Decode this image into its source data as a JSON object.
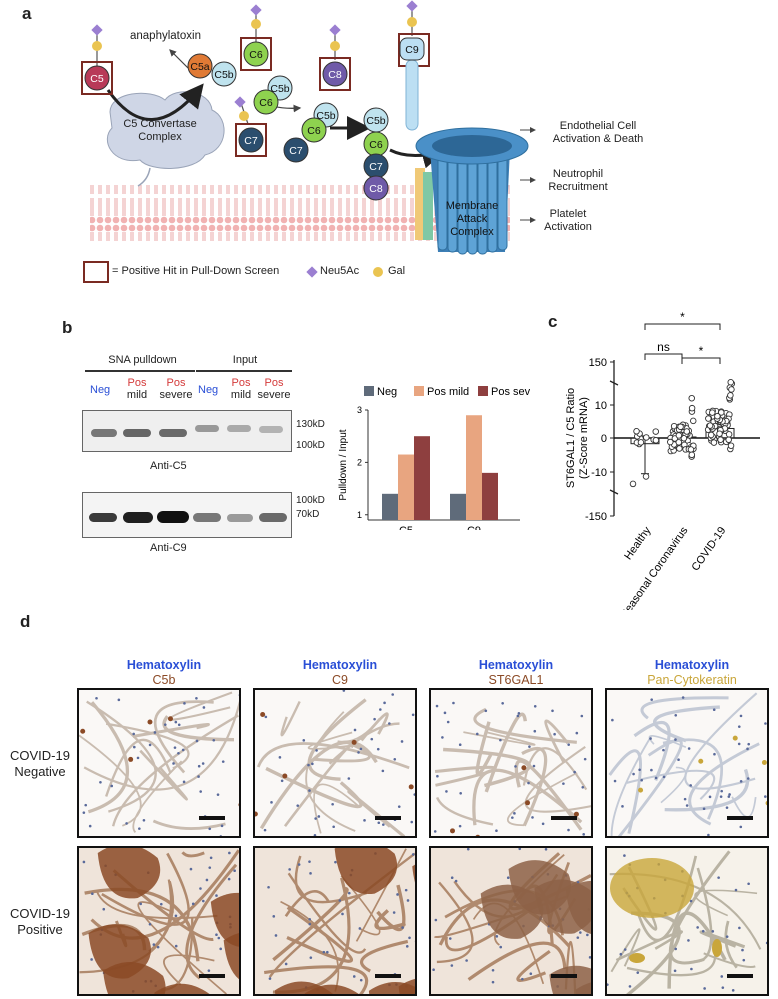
{
  "panel_a": {
    "label": "a",
    "anaphylatoxin": "anaphylatoxin",
    "convertase": [
      "C5 Convertase",
      "Complex"
    ],
    "mac": [
      "Membrane",
      "Attack",
      "Complex"
    ],
    "outcomes": [
      [
        "Endothelial Cell",
        "Activation & Death"
      ],
      [
        "Neutrophil",
        "Recruitment"
      ],
      [
        "Platelet",
        "Activation"
      ]
    ],
    "proteins": {
      "c5": "C5",
      "c5a": "C5a",
      "c5b": "C5b",
      "c6": "C6",
      "c7": "C7",
      "c8": "C8",
      "c9": "C9"
    },
    "legend": {
      "box": "= Positive Hit in Pull-Down Screen",
      "neu5ac": "Neu5Ac",
      "gal": "Gal"
    }
  },
  "panel_b": {
    "label": "b",
    "sna": "SNA pulldown",
    "input": "Input",
    "neg": "Neg",
    "pos": "Pos",
    "mild": "mild",
    "severe": "severe",
    "mw": [
      "130kD",
      "100kD",
      "100kD",
      "70kD"
    ],
    "anti_c5": "Anti-C5",
    "anti_c9": "Anti-C9"
  },
  "panel_c": {
    "label": "c"
  },
  "panel_d": {
    "label": "d",
    "stain_base": "Hematoxylin",
    "stains": [
      "C5b",
      "C9",
      "ST6GAL1",
      "Pan-Cytokeratin"
    ],
    "rows": [
      [
        "COVID-19",
        "Negative"
      ],
      [
        "COVID-19",
        "Positive"
      ]
    ]
  },
  "colors": {
    "neg": "#5f6b7a",
    "mild": "#e8a580",
    "severe": "#8e3f3f",
    "stain_brown": "#8b4a26",
    "stain_yellow": "#c9a63a",
    "hema_blue": "#2a4fd6"
  },
  "chart_data": [
    {
      "type": "bar",
      "ylabel": "Pulldown / Input",
      "categories": [
        "C5",
        "C9"
      ],
      "series": [
        {
          "name": "Neg",
          "values": [
            1.4,
            1.4
          ]
        },
        {
          "name": "Pos mild",
          "values": [
            2.15,
            2.9
          ]
        },
        {
          "name": "Pos severe",
          "values": [
            2.5,
            1.8
          ]
        }
      ],
      "ylim": [
        0.9,
        3
      ],
      "yticks": [
        "1",
        "2",
        "3"
      ]
    },
    {
      "type": "scatter",
      "ylabel": "ST6GAL1 / C5 Ratio (Z-Score mRNA)",
      "categories": [
        "Healthy",
        "Seasonal Coronavirus",
        "COVID-19"
      ],
      "yticks": [
        "150",
        "10",
        "0",
        "-10",
        "-150"
      ],
      "means": [
        -0.5,
        0.3,
        2.8
      ],
      "significance": [
        "*",
        "ns",
        "*"
      ]
    }
  ]
}
